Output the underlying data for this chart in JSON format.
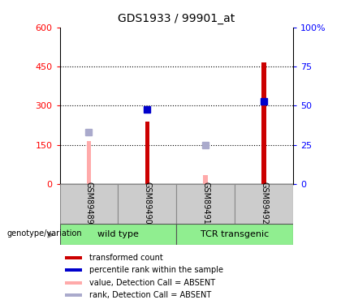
{
  "title": "GDS1933 / 99901_at",
  "samples": [
    "GSM89489",
    "GSM89490",
    "GSM89491",
    "GSM89492"
  ],
  "transformed_count": [
    null,
    240,
    null,
    465
  ],
  "percentile_rank_val": [
    null,
    285,
    null,
    315
  ],
  "absent_value": [
    165,
    null,
    35,
    null
  ],
  "absent_rank_val": [
    200,
    null,
    150,
    null
  ],
  "ylim_left": [
    0,
    600
  ],
  "ylim_right": [
    0,
    100
  ],
  "yticks_left": [
    0,
    150,
    300,
    450,
    600
  ],
  "yticks_right": [
    0,
    25,
    50,
    75,
    100
  ],
  "ytick_labels_right": [
    "0",
    "25",
    "50",
    "75",
    "100%"
  ],
  "bar_color_red": "#cc0000",
  "bar_color_blue": "#0000cc",
  "bar_color_pink": "#ffaaaa",
  "bar_color_lightblue": "#aaaacc",
  "background_color": "#ffffff",
  "grid_color": "#000000",
  "legend_items": [
    {
      "color": "#cc0000",
      "label": "transformed count"
    },
    {
      "color": "#0000cc",
      "label": "percentile rank within the sample"
    },
    {
      "color": "#ffaaaa",
      "label": "value, Detection Call = ABSENT"
    },
    {
      "color": "#aaaacc",
      "label": "rank, Detection Call = ABSENT"
    }
  ]
}
